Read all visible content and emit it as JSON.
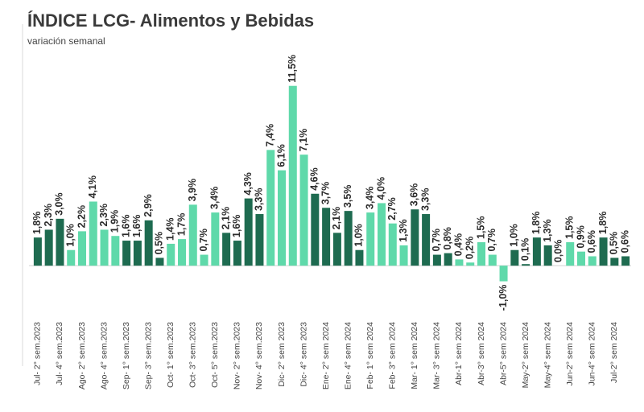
{
  "chart_data": {
    "type": "bar",
    "title": "ÍNDICE LCG- Alimentos y Bebidas",
    "subtitle": "variación semanal",
    "categories": [
      "Jul- 2° sem.2023",
      null,
      "Jul- 4° sem.2023",
      null,
      "Ago- 2° sem.2023",
      null,
      "Ago- 4° sem.2023",
      null,
      "Sep- 1° sem.2023",
      null,
      "Sep- 3° sem.2023",
      null,
      "Oct- 1° sem.2023",
      null,
      "Oct- 3° sem.2023",
      null,
      "Oct- 5° sem.2023",
      null,
      "Nov- 2° sem.2023",
      null,
      "Nov- 4° sem.2023",
      null,
      "Dic- 2° sem 2023",
      null,
      "Dic- 4° sem 2023",
      null,
      "Ene- 2° sem 2024",
      null,
      "Ene- 4° sem 2024",
      null,
      "Feb- 1° sem 2024",
      null,
      "Feb- 3° sem 2024",
      null,
      "Mar- 1° sem 2024",
      null,
      "Mar- 3° sem 2024",
      null,
      "Abr-1° sem 2024",
      null,
      "Abr-3° sem 2024",
      null,
      "Abr-5° sem 2024",
      null,
      "May-2° sem 2024",
      null,
      "May-4° sem 2024",
      null,
      "Jun-2° sem 2024",
      null,
      "Jun-4° sem 2024",
      null,
      "Jul-2° sem 2024",
      null
    ],
    "values": [
      1.8,
      2.3,
      3.0,
      1.0,
      2.2,
      4.1,
      2.3,
      1.9,
      1.6,
      1.6,
      2.9,
      0.5,
      1.4,
      1.7,
      3.9,
      0.7,
      3.4,
      2.1,
      1.6,
      4.3,
      3.3,
      7.4,
      6.1,
      11.5,
      7.1,
      4.6,
      3.7,
      2.1,
      3.5,
      1.0,
      3.4,
      4.0,
      2.7,
      1.3,
      3.6,
      3.3,
      0.7,
      0.8,
      0.4,
      0.2,
      1.5,
      0.7,
      -1.0,
      1.0,
      0.1,
      1.8,
      1.3,
      0.0,
      1.5,
      0.9,
      0.6,
      1.8,
      0.5,
      0.6
    ],
    "value_labels": [
      "1,8%",
      "2,3%",
      "3,0%",
      "1,0%",
      "2,2%",
      "4,1%",
      "2,3%",
      "1,9%",
      "1,6%",
      "1,6%",
      "2,9%",
      "0,5%",
      "1,4%",
      "1,7%",
      "3,9%",
      "0,7%",
      "3,4%",
      "2,1%",
      "1,6%",
      "4,3%",
      "3,3%",
      "7,4%",
      "6,1%",
      "11,5%",
      "7,1%",
      "4,6%",
      "3,7%",
      "2,1%",
      "3,5%",
      "1,0%",
      "3,4%",
      "4,0%",
      "2,7%",
      "1,3%",
      "3,6%",
      "3,3%",
      "0,7%",
      "0,8%",
      "0,4%",
      "0,2%",
      "1,5%",
      "0,7%",
      "-1,0%",
      "1,0%",
      "0,1%",
      "1,8%",
      "1,3%",
      "0,0%",
      "1,5%",
      "0,9%",
      "0,6%",
      "1,8%",
      "0,5%",
      "0,6%"
    ],
    "colors": [
      "#1e6b50",
      "#1e6b50",
      "#1e6b50",
      "#5fd9aa",
      "#5fd9aa",
      "#5fd9aa",
      "#5fd9aa",
      "#5fd9aa",
      "#1e6b50",
      "#1e6b50",
      "#1e6b50",
      "#1e6b50",
      "#5fd9aa",
      "#5fd9aa",
      "#5fd9aa",
      "#5fd9aa",
      "#5fd9aa",
      "#1e6b50",
      "#1e6b50",
      "#1e6b50",
      "#1e6b50",
      "#5fd9aa",
      "#5fd9aa",
      "#5fd9aa",
      "#5fd9aa",
      "#1e6b50",
      "#1e6b50",
      "#1e6b50",
      "#1e6b50",
      "#1e6b50",
      "#5fd9aa",
      "#5fd9aa",
      "#5fd9aa",
      "#5fd9aa",
      "#1e6b50",
      "#1e6b50",
      "#1e6b50",
      "#1e6b50",
      "#5fd9aa",
      "#5fd9aa",
      "#5fd9aa",
      "#5fd9aa",
      "#5fd9aa",
      "#1e6b50",
      "#1e6b50",
      "#1e6b50",
      "#1e6b50",
      "#5fd9aa",
      "#5fd9aa",
      "#5fd9aa",
      "#5fd9aa",
      "#1e6b50",
      "#1e6b50",
      "#1e6b50"
    ],
    "ylim": [
      -2,
      12
    ]
  }
}
